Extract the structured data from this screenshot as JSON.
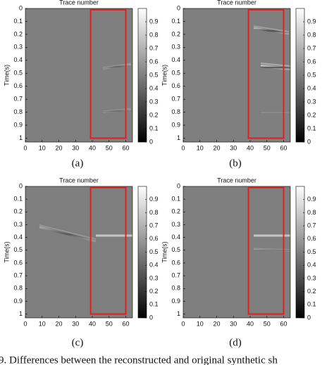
{
  "chart_data": [
    {
      "type": "heatmap",
      "xlabel": "Trace number",
      "ylabel": "Time(s)",
      "panel_label": "(a)",
      "xlim": [
        0,
        64
      ],
      "xticks": [
        0,
        10,
        20,
        30,
        40,
        50,
        60
      ],
      "ylim": [
        0,
        1.03
      ],
      "yticks": [
        0,
        0.1,
        0.2,
        0.3,
        0.4,
        0.5,
        0.6,
        0.7,
        0.8,
        0.9,
        1
      ],
      "colorbar": {
        "lim": [
          0,
          1
        ],
        "ticks": [
          0,
          0.1,
          0.2,
          0.3,
          0.4,
          0.5,
          0.6,
          0.7,
          0.8,
          0.9
        ]
      },
      "highlight": {
        "color": "#e02020",
        "x": [
          39,
          60
        ],
        "y": [
          0.01,
          1
        ]
      }
    },
    {
      "type": "heatmap",
      "xlabel": "Trace number",
      "ylabel": "Time(s)",
      "panel_label": "(b)",
      "xlim": [
        0,
        64
      ],
      "xticks": [
        0,
        10,
        20,
        30,
        40,
        50,
        60
      ],
      "ylim": [
        0,
        1.03
      ],
      "yticks": [
        0,
        0.1,
        0.2,
        0.3,
        0.4,
        0.5,
        0.6,
        0.7,
        0.8,
        0.9,
        1
      ],
      "colorbar": {
        "lim": [
          0,
          1
        ],
        "ticks": [
          0,
          0.1,
          0.2,
          0.3,
          0.4,
          0.5,
          0.6,
          0.7,
          0.8,
          0.9
        ]
      },
      "highlight": {
        "color": "#e02020",
        "x": [
          39,
          60
        ],
        "y": [
          0.01,
          1
        ]
      }
    },
    {
      "type": "heatmap",
      "xlabel": "Trace number",
      "ylabel": "Time(s)",
      "panel_label": "(c)",
      "xlim": [
        0,
        64
      ],
      "xticks": [
        0,
        10,
        20,
        30,
        40,
        50,
        60
      ],
      "ylim": [
        0,
        1.03
      ],
      "yticks": [
        0,
        0.1,
        0.2,
        0.3,
        0.4,
        0.5,
        0.6,
        0.7,
        0.8,
        0.9,
        1
      ],
      "colorbar": {
        "lim": [
          0,
          1
        ],
        "ticks": [
          0,
          0.1,
          0.2,
          0.3,
          0.4,
          0.5,
          0.6,
          0.7,
          0.8,
          0.9
        ]
      },
      "highlight": {
        "color": "#e02020",
        "x": [
          39,
          60
        ],
        "y": [
          0.01,
          1
        ]
      }
    },
    {
      "type": "heatmap",
      "xlabel": "Trace number",
      "ylabel": "Time(s)",
      "panel_label": "(d)",
      "xlim": [
        0,
        64
      ],
      "xticks": [
        0,
        10,
        20,
        30,
        40,
        50,
        60
      ],
      "ylim": [
        0,
        1.03
      ],
      "yticks": [
        0,
        0.1,
        0.2,
        0.3,
        0.4,
        0.5,
        0.6,
        0.7,
        0.8,
        0.9,
        1
      ],
      "colorbar": {
        "lim": [
          0,
          1
        ],
        "ticks": [
          0,
          0.1,
          0.2,
          0.3,
          0.4,
          0.5,
          0.6,
          0.7,
          0.8,
          0.9
        ]
      },
      "highlight": {
        "color": "#e02020",
        "x": [
          39,
          60
        ],
        "y": [
          0.01,
          1
        ]
      }
    }
  ],
  "caption": "9.    Differences between the reconstructed and original synthetic sh"
}
